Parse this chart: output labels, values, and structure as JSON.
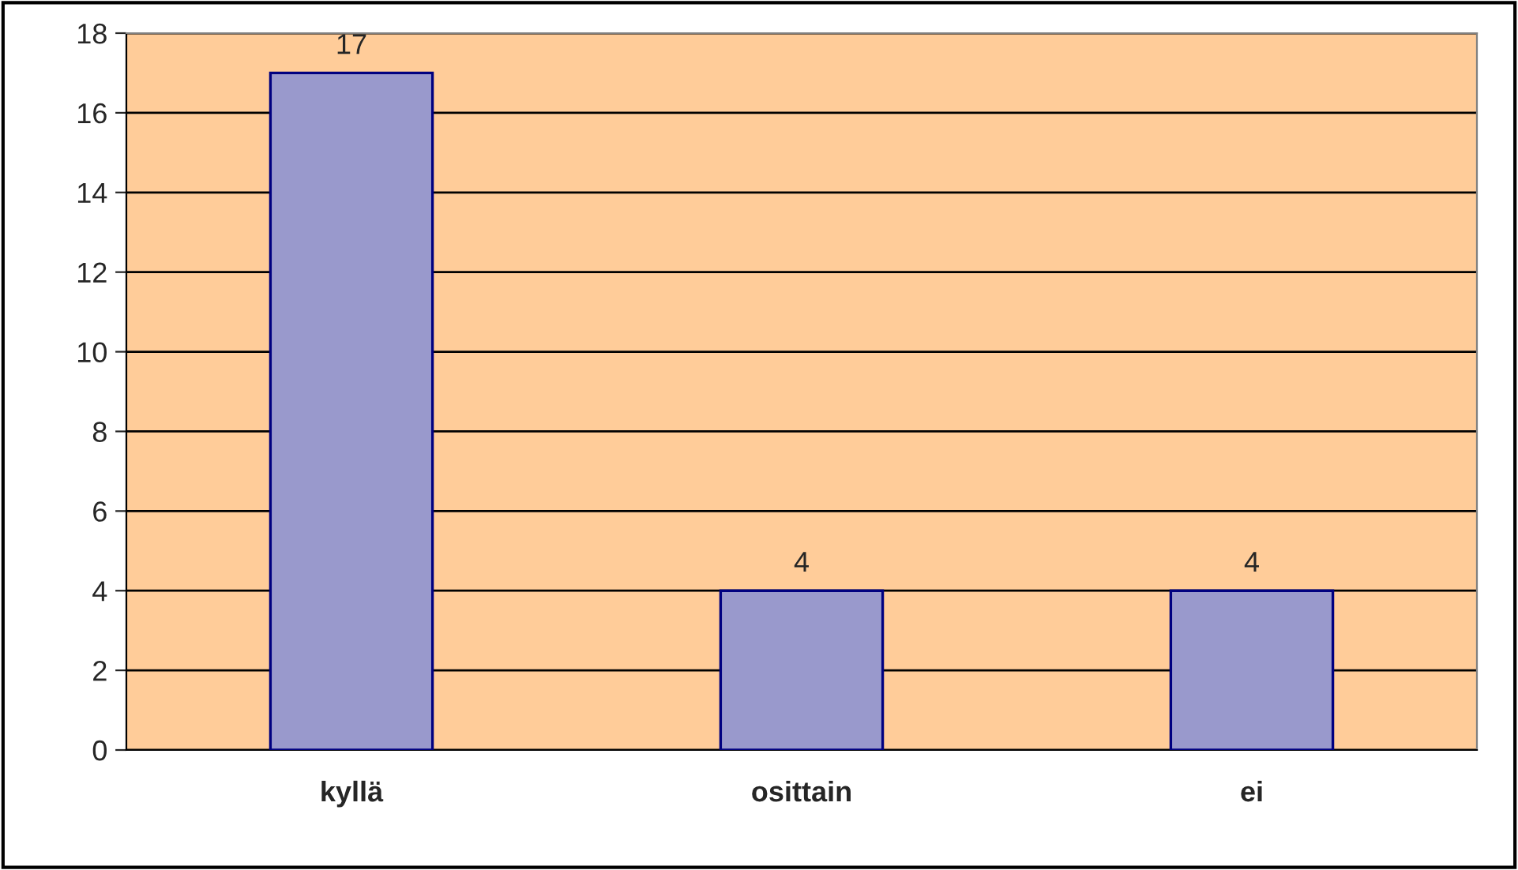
{
  "chart_data": {
    "type": "bar",
    "categories": [
      "kyllä",
      "osittain",
      "ei"
    ],
    "values": [
      17,
      4,
      4
    ],
    "color": "#9999cc",
    "ylim": [
      0,
      18
    ],
    "yticks": [
      0,
      2,
      4,
      6,
      8,
      10,
      12,
      14,
      16,
      18
    ],
    "grid": "y",
    "data_labels": true
  }
}
